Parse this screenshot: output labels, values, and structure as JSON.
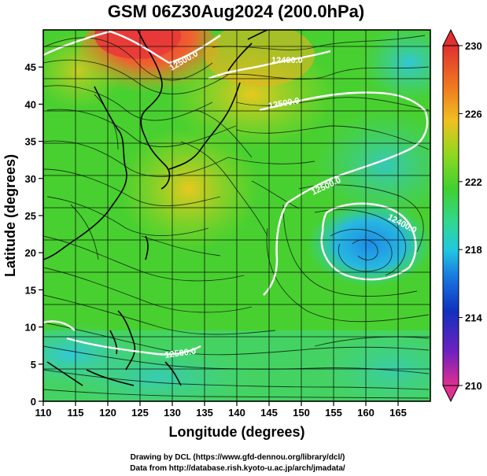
{
  "title": "GSM 06Z30Aug2024 (200.0hPa)",
  "xlabel": "Longitude (degrees)",
  "ylabel": "Latitude  (degrees)",
  "credits": {
    "line1": "Drawing by DCL (https://www.gfd-dennou.org/library/dcl/)",
    "line2": "Data from http://database.rish.kyoto-u.ac.jp/arch/jmadata/"
  },
  "map": {
    "lon_range": [
      110,
      170
    ],
    "lat_range": [
      0,
      50
    ],
    "grid": true,
    "grid_spacing_deg": 5,
    "x_ticks": [
      "110",
      "115",
      "120",
      "125",
      "130",
      "135",
      "140",
      "145",
      "150",
      "155",
      "160",
      "165"
    ],
    "y_ticks": [
      "0",
      "5",
      "10",
      "15",
      "20",
      "25",
      "30",
      "35",
      "40",
      "45"
    ],
    "colorbar": {
      "ticks": [
        "230",
        "226",
        "222",
        "218",
        "214",
        "210"
      ],
      "range": [
        210,
        230
      ],
      "colors": [
        "#e03090",
        "#7020c0",
        "#1030c0",
        "#1878e0",
        "#20c8e0",
        "#30d890",
        "#40d030",
        "#90d820",
        "#f0c020",
        "#f07820",
        "#e03030"
      ]
    },
    "contour_labels": [
      "12500.0",
      "12400.0",
      "12500.0",
      "12500.0",
      "12400.0",
      "12500.0"
    ],
    "field_colors": {
      "warm_north": "#e84040",
      "orange": "#f0a020",
      "yellow": "#d8d020",
      "green": "#40d030",
      "cyan": "#30d8a0",
      "blue": "#2890e0"
    }
  }
}
